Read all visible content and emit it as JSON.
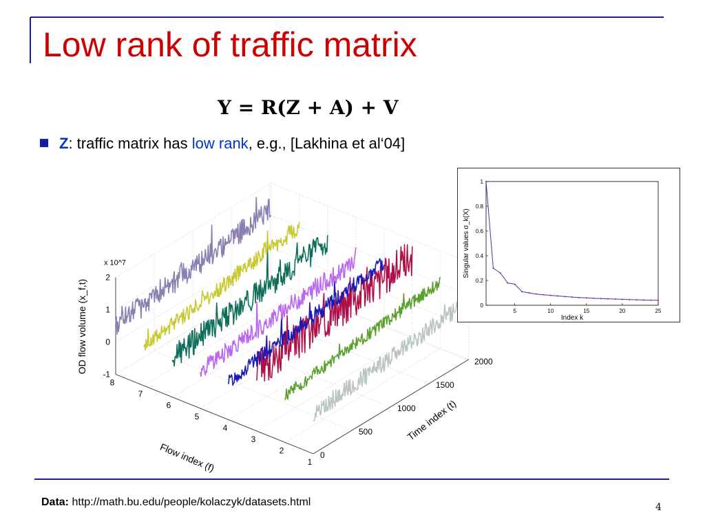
{
  "slide": {
    "title": "Low rank of traffic matrix",
    "equation": "Y = R(Z + A) + V",
    "bullet": {
      "term": "Z",
      "text_before": ": traffic matrix has ",
      "highlight": "low rank",
      "text_after": ", e.g., [Lakhina et al‘04]"
    },
    "footer": {
      "label": "Data:",
      "url": "http://math.bu.edu/people/kolaczyk/datasets.html"
    },
    "page_number": "4",
    "colors": {
      "title": "#cc0000",
      "accent_line": "#1a1aa6",
      "highlight": "#0033cc"
    }
  },
  "chart_data": [
    {
      "type": "line",
      "subtype": "3d-waterfall",
      "zlabel": "OD flow volume (x_f,t)",
      "zscale_label": "x 10^7",
      "xlabel": "Flow index (f)",
      "ylabel": "Time index (t)",
      "flow_ticks": [
        "1",
        "2",
        "3",
        "4",
        "5",
        "6",
        "7",
        "8"
      ],
      "time_ticks": [
        "0",
        "500",
        "1000",
        "1500",
        "2000"
      ],
      "z_ticks": [
        "-1",
        "0",
        "1",
        "2"
      ],
      "zlim": [
        -1,
        2
      ],
      "time_range": [
        0,
        2016
      ],
      "series": [
        {
          "flow": 1,
          "color": "#b8c4c0",
          "base": 0.25,
          "trend": 0.55,
          "noise": 0.35
        },
        {
          "flow": 2,
          "color": "#5aa02c",
          "base": 0.45,
          "trend": 0.6,
          "noise": 0.25
        },
        {
          "flow": 3,
          "color": "#b0104a",
          "base": 0.9,
          "trend": 0.6,
          "noise": 0.75
        },
        {
          "flow": 4,
          "color": "#1a1ab8",
          "base": 0.2,
          "trend": 0.75,
          "noise": 0.3
        },
        {
          "flow": 5,
          "color": "#bb66ee",
          "base": 0.2,
          "trend": 0.45,
          "noise": 0.35
        },
        {
          "flow": 6,
          "color": "#0e6e5a",
          "base": 0.2,
          "trend": 0.7,
          "noise": 0.5
        },
        {
          "flow": 7,
          "color": "#c8c830",
          "base": 0.2,
          "trend": 0.8,
          "noise": 0.3
        },
        {
          "flow": 8,
          "color": "#8a7fb0",
          "base": 0.5,
          "trend": 0.7,
          "noise": 0.45
        }
      ]
    },
    {
      "type": "line",
      "title": "",
      "xlabel": "Index k",
      "ylabel": "Singular values σ_k(X)",
      "xlim": [
        1,
        25
      ],
      "ylim": [
        0,
        1
      ],
      "x_ticks": [
        "5",
        "10",
        "15",
        "20",
        "25"
      ],
      "y_ticks": [
        "0",
        "0.2",
        "0.4",
        "0.6",
        "0.8",
        "1"
      ],
      "series": [
        {
          "color": "#3333cc",
          "marker_color": "#cc3333",
          "x": [
            1,
            2,
            3,
            4,
            5,
            6,
            7,
            8,
            9,
            10,
            11,
            12,
            13,
            14,
            15,
            16,
            17,
            18,
            19,
            20,
            21,
            22,
            23,
            24,
            25
          ],
          "y": [
            1.0,
            0.3,
            0.26,
            0.18,
            0.17,
            0.11,
            0.1,
            0.09,
            0.085,
            0.08,
            0.075,
            0.07,
            0.066,
            0.062,
            0.06,
            0.056,
            0.054,
            0.052,
            0.05,
            0.048,
            0.046,
            0.044,
            0.042,
            0.041,
            0.04
          ]
        }
      ]
    }
  ]
}
